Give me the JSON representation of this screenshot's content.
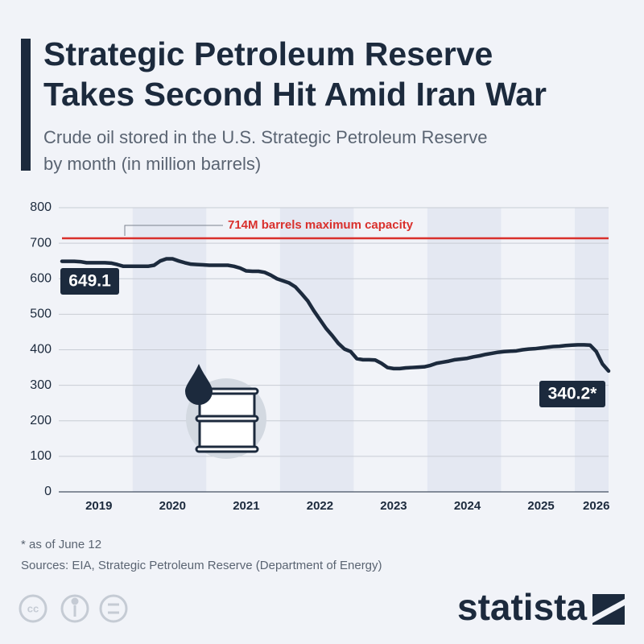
{
  "chart_data": {
    "type": "line",
    "title": [
      "Strategic Petroleum Reserve",
      "Takes Second Hit Amid Iran War"
    ],
    "subtitle": [
      "Crude oil stored in the U.S. Strategic Petroleum Reserve",
      "by month (in million barrels)"
    ],
    "categories": [
      null,
      null,
      null,
      null,
      null,
      null,
      "2019",
      null,
      null,
      null,
      null,
      null,
      null,
      null,
      null,
      null,
      null,
      null,
      "2020",
      null,
      null,
      null,
      null,
      null,
      null,
      null,
      null,
      null,
      null,
      null,
      "2021",
      null,
      null,
      null,
      null,
      null,
      null,
      null,
      null,
      null,
      null,
      null,
      "2022",
      null,
      null,
      null,
      null,
      null,
      null,
      null,
      null,
      null,
      null,
      null,
      "2023",
      null,
      null,
      null,
      null,
      null,
      null,
      null,
      null,
      null,
      null,
      null,
      "2024",
      null,
      null,
      null,
      null,
      null,
      null,
      null,
      null,
      null,
      null,
      null,
      "2025",
      null,
      null,
      null,
      null,
      null,
      null,
      null,
      null,
      "2026",
      null,
      null
    ],
    "series": [
      {
        "name": "Crude oil stored",
        "color": "#1c2a3d",
        "values": [
          649.1,
          649,
          649,
          648,
          645,
          645,
          645,
          645,
          644,
          640,
          635,
          635,
          635,
          635,
          635,
          638,
          650,
          656,
          656,
          650,
          645,
          641,
          640,
          639,
          638,
          638,
          638,
          638,
          635,
          630,
          622,
          621,
          621,
          618,
          610,
          600,
          594,
          588,
          577,
          558,
          538,
          510,
          485,
          460,
          440,
          418,
          402,
          395,
          375,
          372,
          372,
          371,
          362,
          350,
          347,
          347,
          349,
          350,
          351,
          352,
          356,
          362,
          365,
          368,
          372,
          374,
          376,
          380,
          383,
          387,
          390,
          393,
          395,
          396,
          397,
          400,
          402,
          403,
          405,
          407,
          409,
          410,
          412,
          413,
          414,
          414,
          413,
          395,
          360,
          340.2
        ],
        "value_labels": [
          "649.1",
          null,
          null,
          null,
          null,
          null,
          null,
          null,
          null,
          null,
          null,
          null,
          null,
          null,
          null,
          null,
          null,
          null,
          null,
          null,
          null,
          null,
          null,
          null,
          null,
          null,
          null,
          null,
          null,
          null,
          null,
          null,
          null,
          null,
          null,
          null,
          null,
          null,
          null,
          null,
          null,
          null,
          null,
          null,
          null,
          null,
          null,
          null,
          null,
          null,
          null,
          null,
          null,
          null,
          null,
          null,
          null,
          null,
          null,
          null,
          null,
          null,
          null,
          null,
          null,
          null,
          null,
          null,
          null,
          null,
          null,
          null,
          null,
          null,
          null,
          null,
          null,
          null,
          null,
          null,
          null,
          null,
          null,
          null,
          null,
          null,
          null,
          null,
          null,
          "340.2*"
        ]
      }
    ],
    "ylim": [
      0,
      800
    ],
    "yticks": [
      0,
      100,
      200,
      300,
      400,
      500,
      600,
      700,
      800
    ],
    "grid": true,
    "reference_line": {
      "value": 714,
      "label": "714M barrels maximum capacity",
      "color": "#d9302c"
    },
    "footnote": "* as of June 12",
    "source": "Sources: EIA, Strategic Petroleum Reserve (Department of Energy)",
    "brand": "statista"
  }
}
